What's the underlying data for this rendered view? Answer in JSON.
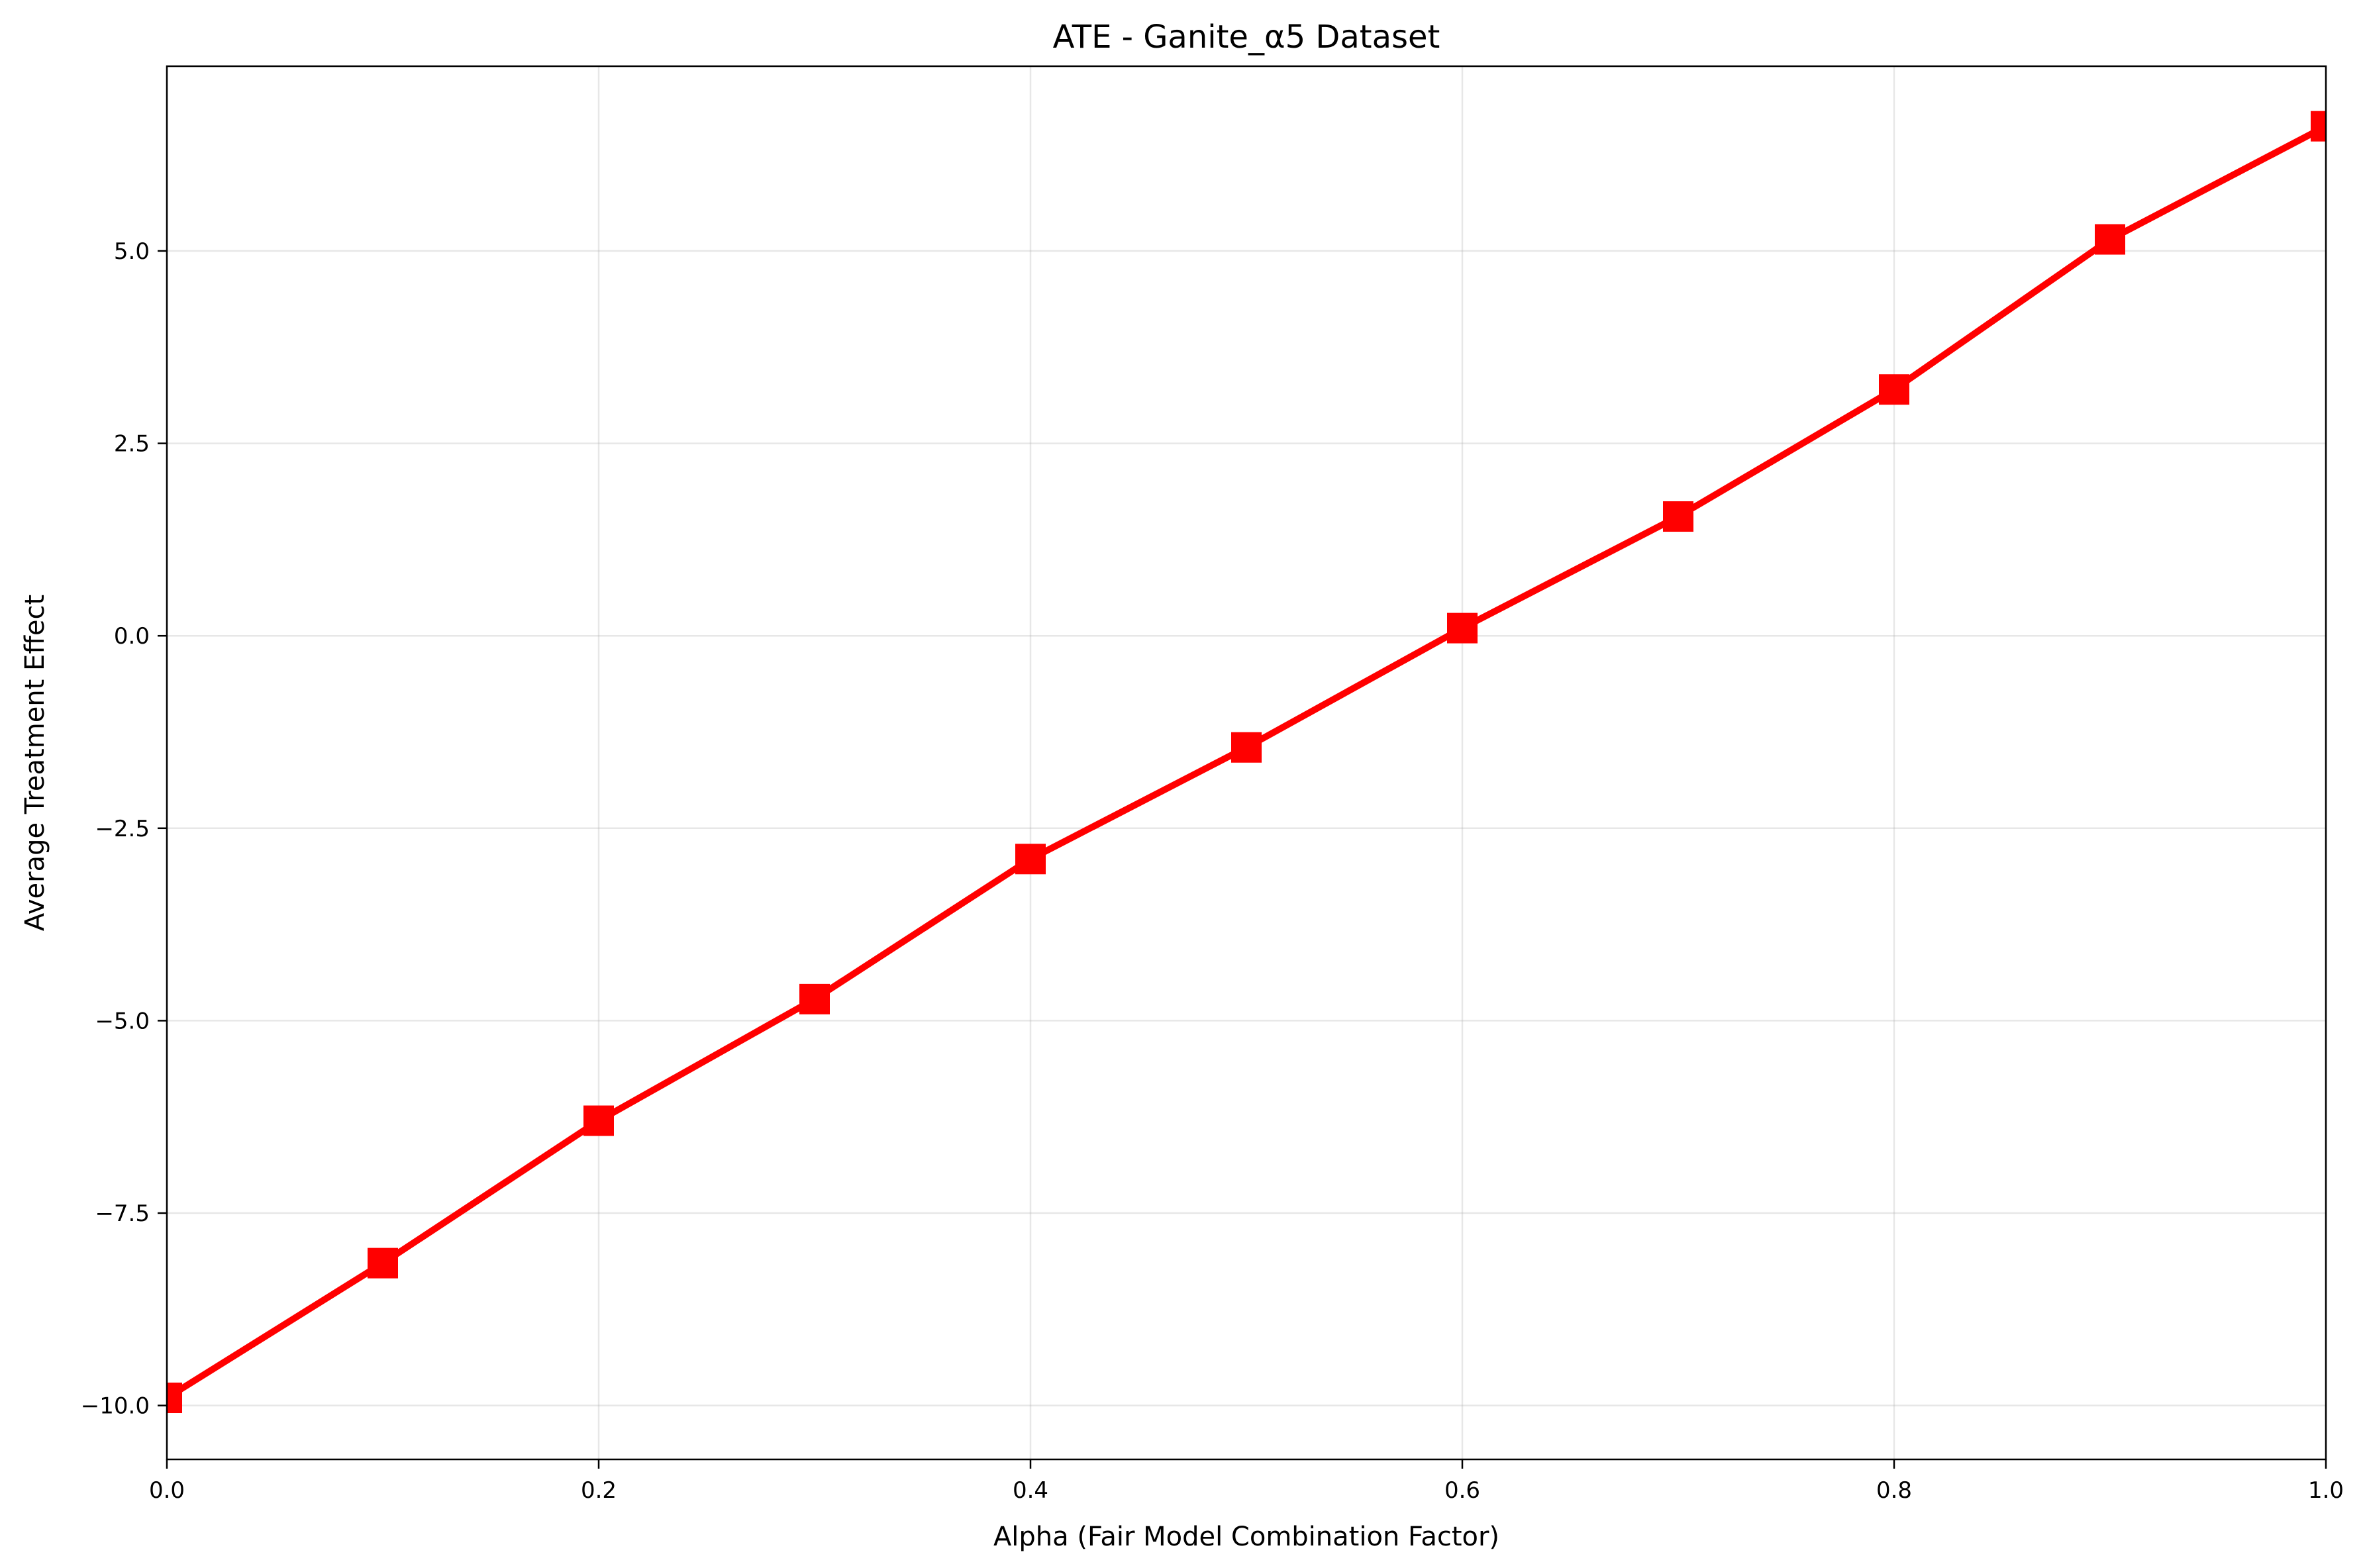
{
  "chart_data": {
    "type": "line",
    "title": "ATE - Ganite_α5 Dataset",
    "xlabel": "Alpha (Fair Model Combination Factor)",
    "ylabel": "Average Treatment Effect",
    "xlim": [
      0.0,
      1.0
    ],
    "ylim": [
      -10.7,
      7.4
    ],
    "xticks": [
      0.0,
      0.2,
      0.4,
      0.6,
      0.8,
      1.0
    ],
    "xtick_labels": [
      "0.0",
      "0.2",
      "0.4",
      "0.6",
      "0.8",
      "1.0"
    ],
    "yticks": [
      -10.0,
      -7.5,
      -5.0,
      -2.5,
      0.0,
      2.5,
      5.0
    ],
    "ytick_labels": [
      "−10.0",
      "−7.5",
      "−5.0",
      "−2.5",
      "0.0",
      "2.5",
      "5.0"
    ],
    "grid": true,
    "series": [
      {
        "color": "#ff0000",
        "marker": "square",
        "x": [
          0.0,
          0.1,
          0.2,
          0.3,
          0.4,
          0.5,
          0.6,
          0.7,
          0.8,
          0.9,
          1.0
        ],
        "y": [
          -9.9,
          -8.15,
          -6.3,
          -4.72,
          -2.9,
          -1.45,
          0.1,
          1.55,
          3.2,
          5.15,
          6.62
        ]
      }
    ]
  }
}
